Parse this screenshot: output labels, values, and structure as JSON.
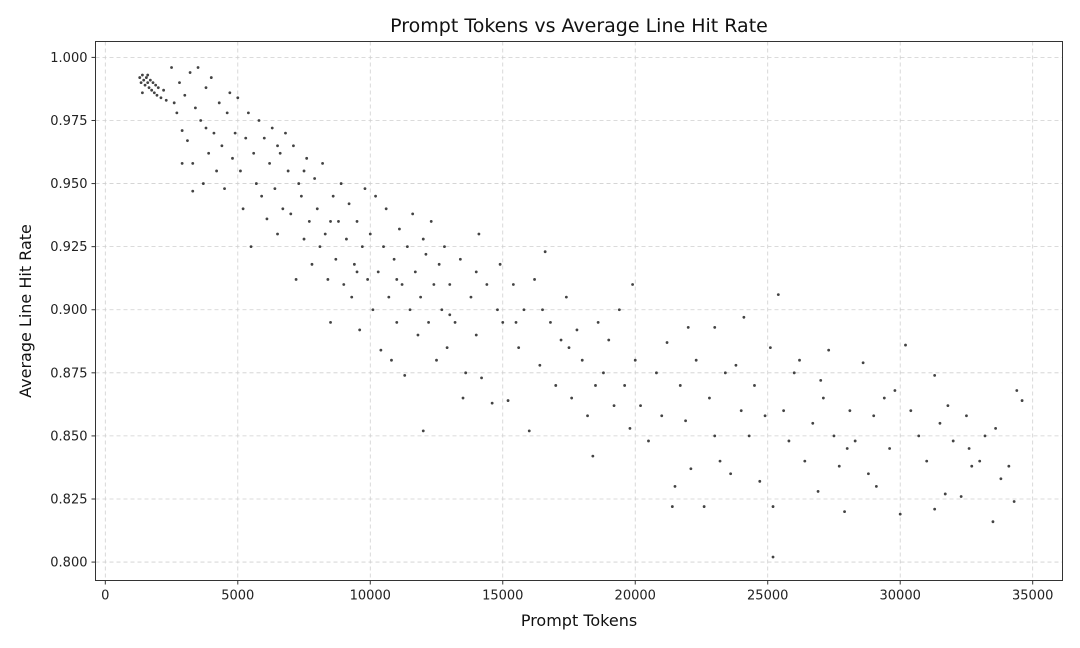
{
  "chart_data": {
    "type": "scatter",
    "title": "Prompt Tokens vs Average Line Hit Rate",
    "xlabel": "Prompt Tokens",
    "ylabel": "Average Line Hit Rate",
    "xlim": [
      -370,
      36125
    ],
    "ylim": [
      0.7927,
      1.0063
    ],
    "xticks": [
      0,
      5000,
      10000,
      15000,
      20000,
      25000,
      30000,
      35000
    ],
    "yticks": [
      0.8,
      0.825,
      0.85,
      0.875,
      0.9,
      0.925,
      0.95,
      0.975,
      1.0
    ],
    "ytick_labels": [
      "0.800",
      "0.825",
      "0.850",
      "0.875",
      "0.900",
      "0.925",
      "0.950",
      "0.975",
      "1.000"
    ],
    "grid": true,
    "marker_color": "#222222",
    "points": [
      [
        1300,
        0.992
      ],
      [
        1350,
        0.99
      ],
      [
        1400,
        0.993
      ],
      [
        1450,
        0.991
      ],
      [
        1500,
        0.989
      ],
      [
        1550,
        0.992
      ],
      [
        1600,
        0.99
      ],
      [
        1650,
        0.988
      ],
      [
        1700,
        0.991
      ],
      [
        1750,
        0.987
      ],
      [
        1800,
        0.99
      ],
      [
        1850,
        0.986
      ],
      [
        1900,
        0.989
      ],
      [
        1950,
        0.985
      ],
      [
        2000,
        0.988
      ],
      [
        2100,
        0.984
      ],
      [
        2200,
        0.987
      ],
      [
        1400,
        0.986
      ],
      [
        1600,
        0.993
      ],
      [
        2300,
        0.983
      ],
      [
        2500,
        0.996
      ],
      [
        2600,
        0.982
      ],
      [
        2700,
        0.978
      ],
      [
        2800,
        0.99
      ],
      [
        2900,
        0.971
      ],
      [
        3000,
        0.985
      ],
      [
        3100,
        0.967
      ],
      [
        3200,
        0.994
      ],
      [
        3300,
        0.958
      ],
      [
        3400,
        0.98
      ],
      [
        3500,
        0.996
      ],
      [
        3600,
        0.975
      ],
      [
        3700,
        0.95
      ],
      [
        3800,
        0.988
      ],
      [
        3900,
        0.962
      ],
      [
        4000,
        0.992
      ],
      [
        4100,
        0.97
      ],
      [
        4200,
        0.955
      ],
      [
        4300,
        0.982
      ],
      [
        4400,
        0.965
      ],
      [
        4500,
        0.948
      ],
      [
        4600,
        0.978
      ],
      [
        4700,
        0.986
      ],
      [
        4800,
        0.96
      ],
      [
        4900,
        0.97
      ],
      [
        3300,
        0.947
      ],
      [
        2900,
        0.958
      ],
      [
        3800,
        0.972
      ],
      [
        5000,
        0.984
      ],
      [
        5100,
        0.955
      ],
      [
        5200,
        0.94
      ],
      [
        5300,
        0.968
      ],
      [
        5400,
        0.978
      ],
      [
        5500,
        0.925
      ],
      [
        5600,
        0.962
      ],
      [
        5700,
        0.95
      ],
      [
        5800,
        0.975
      ],
      [
        5900,
        0.945
      ],
      [
        6000,
        0.968
      ],
      [
        6100,
        0.936
      ],
      [
        6200,
        0.958
      ],
      [
        6300,
        0.972
      ],
      [
        6400,
        0.948
      ],
      [
        6500,
        0.93
      ],
      [
        6600,
        0.962
      ],
      [
        6700,
        0.94
      ],
      [
        6800,
        0.97
      ],
      [
        6900,
        0.955
      ],
      [
        7000,
        0.938
      ],
      [
        7100,
        0.965
      ],
      [
        7200,
        0.912
      ],
      [
        7300,
        0.95
      ],
      [
        7400,
        0.945
      ],
      [
        7500,
        0.928
      ],
      [
        7600,
        0.96
      ],
      [
        7700,
        0.935
      ],
      [
        7800,
        0.918
      ],
      [
        7900,
        0.952
      ],
      [
        8000,
        0.94
      ],
      [
        8100,
        0.925
      ],
      [
        8200,
        0.958
      ],
      [
        8300,
        0.93
      ],
      [
        8400,
        0.912
      ],
      [
        8500,
        0.895
      ],
      [
        8600,
        0.945
      ],
      [
        8700,
        0.92
      ],
      [
        8800,
        0.935
      ],
      [
        8900,
        0.95
      ],
      [
        9000,
        0.91
      ],
      [
        9100,
        0.928
      ],
      [
        9200,
        0.942
      ],
      [
        9300,
        0.905
      ],
      [
        9400,
        0.918
      ],
      [
        9500,
        0.935
      ],
      [
        9600,
        0.892
      ],
      [
        9700,
        0.925
      ],
      [
        9800,
        0.948
      ],
      [
        9900,
        0.912
      ],
      [
        6500,
        0.965
      ],
      [
        7500,
        0.955
      ],
      [
        8500,
        0.935
      ],
      [
        9500,
        0.915
      ],
      [
        10000,
        0.93
      ],
      [
        10100,
        0.9
      ],
      [
        10200,
        0.945
      ],
      [
        10300,
        0.915
      ],
      [
        10400,
        0.884
      ],
      [
        10500,
        0.925
      ],
      [
        10600,
        0.94
      ],
      [
        10700,
        0.905
      ],
      [
        10800,
        0.88
      ],
      [
        10900,
        0.92
      ],
      [
        11000,
        0.895
      ],
      [
        11100,
        0.932
      ],
      [
        11200,
        0.91
      ],
      [
        11300,
        0.874
      ],
      [
        11400,
        0.925
      ],
      [
        11500,
        0.9
      ],
      [
        11600,
        0.938
      ],
      [
        11700,
        0.915
      ],
      [
        11800,
        0.89
      ],
      [
        11900,
        0.905
      ],
      [
        12000,
        0.852
      ],
      [
        12100,
        0.922
      ],
      [
        12200,
        0.895
      ],
      [
        12300,
        0.935
      ],
      [
        12400,
        0.91
      ],
      [
        12500,
        0.88
      ],
      [
        12600,
        0.918
      ],
      [
        12700,
        0.9
      ],
      [
        12800,
        0.925
      ],
      [
        12900,
        0.885
      ],
      [
        13000,
        0.91
      ],
      [
        13200,
        0.895
      ],
      [
        13400,
        0.92
      ],
      [
        13600,
        0.875
      ],
      [
        13800,
        0.905
      ],
      [
        14000,
        0.89
      ],
      [
        14100,
        0.93
      ],
      [
        14200,
        0.873
      ],
      [
        14400,
        0.91
      ],
      [
        14600,
        0.863
      ],
      [
        14800,
        0.9
      ],
      [
        14900,
        0.918
      ],
      [
        11000,
        0.912
      ],
      [
        12000,
        0.928
      ],
      [
        13000,
        0.898
      ],
      [
        14000,
        0.915
      ],
      [
        13500,
        0.865
      ],
      [
        15000,
        0.895
      ],
      [
        15200,
        0.864
      ],
      [
        15400,
        0.91
      ],
      [
        15600,
        0.885
      ],
      [
        15800,
        0.9
      ],
      [
        16000,
        0.852
      ],
      [
        16200,
        0.912
      ],
      [
        16400,
        0.878
      ],
      [
        16600,
        0.923
      ],
      [
        16800,
        0.895
      ],
      [
        17000,
        0.87
      ],
      [
        17200,
        0.888
      ],
      [
        17400,
        0.905
      ],
      [
        17600,
        0.865
      ],
      [
        17800,
        0.892
      ],
      [
        18000,
        0.88
      ],
      [
        18200,
        0.858
      ],
      [
        18400,
        0.842
      ],
      [
        18600,
        0.895
      ],
      [
        18800,
        0.875
      ],
      [
        19000,
        0.888
      ],
      [
        19200,
        0.862
      ],
      [
        19400,
        0.9
      ],
      [
        19600,
        0.87
      ],
      [
        19800,
        0.853
      ],
      [
        19900,
        0.91
      ],
      [
        15500,
        0.895
      ],
      [
        16500,
        0.9
      ],
      [
        17500,
        0.885
      ],
      [
        18500,
        0.87
      ],
      [
        20000,
        0.88
      ],
      [
        20200,
        0.862
      ],
      [
        20500,
        0.848
      ],
      [
        20800,
        0.875
      ],
      [
        21000,
        0.858
      ],
      [
        21200,
        0.887
      ],
      [
        21400,
        0.822
      ],
      [
        21500,
        0.83
      ],
      [
        21700,
        0.87
      ],
      [
        21900,
        0.856
      ],
      [
        22100,
        0.837
      ],
      [
        22300,
        0.88
      ],
      [
        22600,
        0.822
      ],
      [
        22800,
        0.865
      ],
      [
        23000,
        0.85
      ],
      [
        23200,
        0.84
      ],
      [
        23400,
        0.875
      ],
      [
        23600,
        0.835
      ],
      [
        23800,
        0.878
      ],
      [
        24000,
        0.86
      ],
      [
        24100,
        0.897
      ],
      [
        24300,
        0.85
      ],
      [
        24500,
        0.87
      ],
      [
        24700,
        0.832
      ],
      [
        24900,
        0.858
      ],
      [
        22000,
        0.893
      ],
      [
        23000,
        0.893
      ],
      [
        25200,
        0.802
      ],
      [
        25200,
        0.822
      ],
      [
        25400,
        0.906
      ],
      [
        25100,
        0.885
      ],
      [
        25600,
        0.86
      ],
      [
        25800,
        0.848
      ],
      [
        26000,
        0.875
      ],
      [
        26200,
        0.88
      ],
      [
        26400,
        0.84
      ],
      [
        26700,
        0.855
      ],
      [
        26900,
        0.828
      ],
      [
        27100,
        0.865
      ],
      [
        27300,
        0.884
      ],
      [
        27500,
        0.85
      ],
      [
        27700,
        0.838
      ],
      [
        27900,
        0.82
      ],
      [
        28100,
        0.86
      ],
      [
        28300,
        0.848
      ],
      [
        28600,
        0.879
      ],
      [
        28800,
        0.835
      ],
      [
        29000,
        0.858
      ],
      [
        29100,
        0.83
      ],
      [
        29400,
        0.865
      ],
      [
        29600,
        0.845
      ],
      [
        29800,
        0.868
      ],
      [
        30000,
        0.819
      ],
      [
        27000,
        0.872
      ],
      [
        28000,
        0.845
      ],
      [
        30200,
        0.886
      ],
      [
        30400,
        0.86
      ],
      [
        30700,
        0.85
      ],
      [
        31000,
        0.84
      ],
      [
        31300,
        0.821
      ],
      [
        31300,
        0.874
      ],
      [
        31500,
        0.855
      ],
      [
        31700,
        0.827
      ],
      [
        32000,
        0.848
      ],
      [
        32300,
        0.826
      ],
      [
        32500,
        0.858
      ],
      [
        32700,
        0.838
      ],
      [
        33000,
        0.84
      ],
      [
        33200,
        0.85
      ],
      [
        33500,
        0.816
      ],
      [
        33600,
        0.853
      ],
      [
        33800,
        0.833
      ],
      [
        34100,
        0.838
      ],
      [
        34300,
        0.824
      ],
      [
        34400,
        0.868
      ],
      [
        34600,
        0.864
      ],
      [
        31800,
        0.862
      ],
      [
        32600,
        0.845
      ]
    ]
  }
}
